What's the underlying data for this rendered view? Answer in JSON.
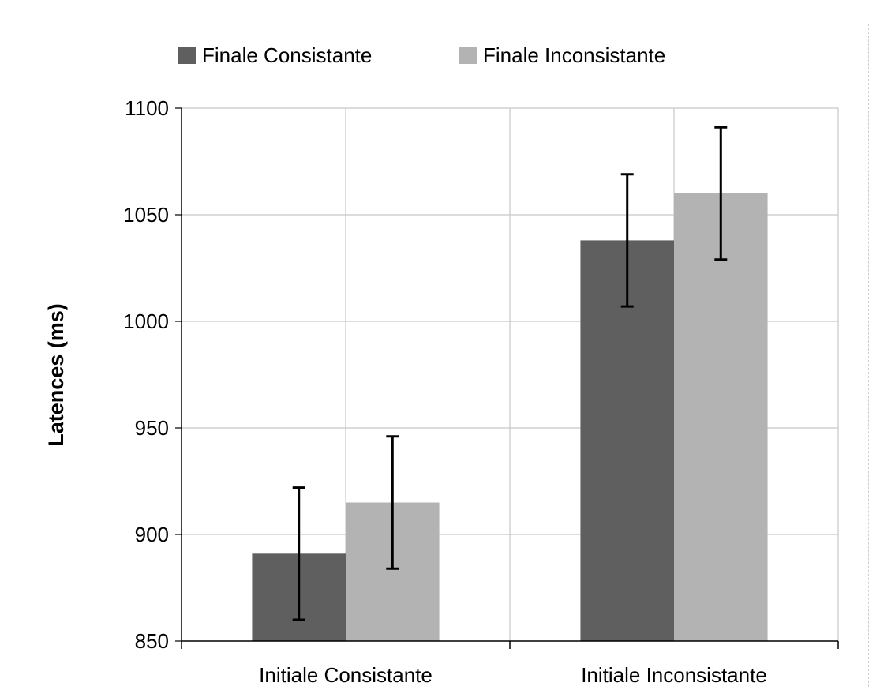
{
  "chart_data": {
    "type": "bar",
    "categories": [
      "Initiale Consistante",
      "Initiale Inconsistante"
    ],
    "series": [
      {
        "name": "Finale Consistante",
        "color": "#5f5f5f",
        "values": [
          891,
          1038
        ],
        "error": [
          31,
          31
        ]
      },
      {
        "name": "Finale Inconsistante",
        "color": "#b3b3b3",
        "values": [
          915,
          1060
        ],
        "error": [
          31,
          31
        ]
      }
    ],
    "xlabel": "",
    "ylabel": "Latences (ms)",
    "ylim": [
      850,
      1100
    ],
    "yticks": [
      850,
      900,
      950,
      1000,
      1050,
      1100
    ],
    "grid": true,
    "legend_position": "top"
  }
}
